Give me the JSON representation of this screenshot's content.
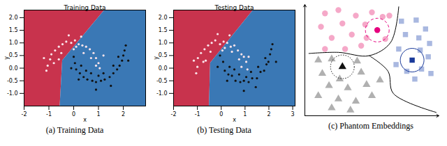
{
  "chart_data": [
    {
      "type": "scatter",
      "title": "Training Data",
      "caption": "(a) Training Data",
      "x_label": "x",
      "y_label": "y",
      "xlim": [
        -2,
        2.9
      ],
      "ylim": [
        -1.5,
        2.3
      ],
      "xticks": [
        -2,
        -1,
        0,
        1,
        2
      ],
      "yticks": [
        {
          "value": -1,
          "label": "-1.0"
        },
        {
          "value": -0.5,
          "label": "-0.5"
        },
        {
          "value": 0,
          "label": "0.0"
        },
        {
          "value": 0.5,
          "label": "0.5"
        },
        {
          "value": 1,
          "label": "1.0"
        },
        {
          "value": 1.5,
          "label": "1.5"
        },
        {
          "value": 2,
          "label": "2.0"
        }
      ],
      "regions": {
        "colors": [
          "#c8334d",
          "#3a78b5"
        ],
        "boundary": {
          "x": [
            -0.55,
            -0.45,
            1.25
          ],
          "y": [
            -1.5,
            0.3,
            2.3
          ]
        }
      },
      "series": [
        {
          "color": "#fbe4ea",
          "marker": "circle",
          "points": [
            [
              -1.05,
              0.1
            ],
            [
              -0.95,
              0.35
            ],
            [
              -0.9,
              0.55
            ],
            [
              -0.75,
              0.7
            ],
            [
              -0.6,
              0.85
            ],
            [
              -0.45,
              0.95
            ],
            [
              -0.3,
              1.05
            ],
            [
              -0.1,
              1.0
            ],
            [
              0.05,
              1.1
            ],
            [
              0.2,
              0.95
            ],
            [
              0.35,
              0.9
            ],
            [
              0.5,
              0.85
            ],
            [
              0.65,
              0.75
            ],
            [
              0.8,
              0.6
            ],
            [
              0.9,
              0.4
            ],
            [
              1.0,
              0.2
            ],
            [
              1.05,
              0.0
            ],
            [
              -0.8,
              0.2
            ],
            [
              -0.5,
              0.6
            ],
            [
              0.0,
              0.75
            ],
            [
              0.4,
              0.6
            ],
            [
              0.7,
              0.4
            ],
            [
              -1.2,
              0.4
            ],
            [
              -0.2,
              1.3
            ],
            [
              0.3,
              1.25
            ],
            [
              1.2,
              0.5
            ],
            [
              0.9,
              0.1
            ],
            [
              -0.6,
              0.35
            ],
            [
              0.1,
              0.85
            ],
            [
              -1.1,
              -0.1
            ]
          ]
        },
        {
          "color": "#111111",
          "marker": "circle",
          "points": [
            [
              0.0,
              0.45
            ],
            [
              0.05,
              0.2
            ],
            [
              0.1,
              -0.05
            ],
            [
              0.25,
              -0.2
            ],
            [
              0.4,
              -0.35
            ],
            [
              0.55,
              -0.45
            ],
            [
              0.75,
              -0.5
            ],
            [
              0.9,
              -0.55
            ],
            [
              1.1,
              -0.5
            ],
            [
              1.25,
              -0.45
            ],
            [
              1.45,
              -0.35
            ],
            [
              1.6,
              -0.2
            ],
            [
              1.75,
              -0.05
            ],
            [
              1.85,
              0.1
            ],
            [
              1.95,
              0.3
            ],
            [
              2.0,
              0.5
            ],
            [
              2.05,
              0.7
            ],
            [
              0.3,
              0.1
            ],
            [
              0.7,
              -0.2
            ],
            [
              1.2,
              -0.2
            ],
            [
              1.6,
              0.1
            ],
            [
              1.8,
              0.45
            ],
            [
              0.2,
              -0.45
            ],
            [
              0.9,
              -0.85
            ],
            [
              1.5,
              -0.7
            ],
            [
              2.2,
              0.3
            ],
            [
              -0.1,
              0.0
            ],
            [
              1.0,
              -0.3
            ],
            [
              2.1,
              0.9
            ],
            [
              0.5,
              -0.1
            ]
          ]
        }
      ]
    },
    {
      "type": "scatter",
      "title": "Testing Data",
      "caption": "(b) Testing Data",
      "x_label": "x",
      "y_label": "y",
      "xlim": [
        -2,
        3.1
      ],
      "ylim": [
        -1.5,
        2.3
      ],
      "xticks": [
        -2,
        -1,
        0,
        1,
        2,
        3
      ],
      "yticks": [
        {
          "value": -1,
          "label": "-1.0"
        },
        {
          "value": -0.5,
          "label": "-0.5"
        },
        {
          "value": 0,
          "label": "0.0"
        },
        {
          "value": 0.5,
          "label": "0.5"
        },
        {
          "value": 1,
          "label": "1.0"
        },
        {
          "value": 1.5,
          "label": "1.5"
        },
        {
          "value": 2,
          "label": "2.0"
        }
      ],
      "regions": {
        "colors": [
          "#c8334d",
          "#3a78b5"
        ],
        "boundary": {
          "x": [
            -0.5,
            -0.45,
            1.35
          ],
          "y": [
            -1.5,
            0.2,
            2.3
          ]
        }
      },
      "series": [
        {
          "color": "#fbe4ea",
          "marker": "circle",
          "points": [
            [
              -1.0,
              0.05
            ],
            [
              -0.98,
              0.4
            ],
            [
              -0.85,
              0.6
            ],
            [
              -0.7,
              0.75
            ],
            [
              -0.55,
              0.9
            ],
            [
              -0.4,
              1.0
            ],
            [
              -0.25,
              1.1
            ],
            [
              -0.05,
              0.95
            ],
            [
              0.1,
              1.05
            ],
            [
              0.25,
              1.0
            ],
            [
              0.4,
              0.85
            ],
            [
              0.55,
              0.9
            ],
            [
              0.7,
              0.7
            ],
            [
              0.85,
              0.55
            ],
            [
              0.95,
              0.45
            ],
            [
              1.05,
              0.25
            ],
            [
              1.1,
              -0.05
            ],
            [
              -0.75,
              0.25
            ],
            [
              -0.45,
              0.65
            ],
            [
              0.05,
              0.7
            ],
            [
              0.45,
              0.65
            ],
            [
              0.75,
              0.35
            ],
            [
              -1.15,
              0.3
            ],
            [
              -0.15,
              1.35
            ],
            [
              0.35,
              1.3
            ],
            [
              1.15,
              0.45
            ],
            [
              0.85,
              0.05
            ],
            [
              -0.65,
              0.3
            ],
            [
              0.15,
              0.8
            ],
            [
              -1.05,
              -0.2
            ]
          ]
        },
        {
          "color": "#111111",
          "marker": "circle",
          "points": [
            [
              -0.05,
              0.5
            ],
            [
              0.08,
              0.25
            ],
            [
              0.15,
              -0.1
            ],
            [
              0.3,
              -0.25
            ],
            [
              0.45,
              -0.3
            ],
            [
              0.6,
              -0.5
            ],
            [
              0.8,
              -0.55
            ],
            [
              0.95,
              -0.5
            ],
            [
              1.15,
              -0.55
            ],
            [
              1.3,
              -0.4
            ],
            [
              1.5,
              -0.4
            ],
            [
              1.65,
              -0.15
            ],
            [
              1.8,
              -0.1
            ],
            [
              1.9,
              0.15
            ],
            [
              1.98,
              0.25
            ],
            [
              2.05,
              0.55
            ],
            [
              2.1,
              0.75
            ],
            [
              0.35,
              0.05
            ],
            [
              0.75,
              -0.25
            ],
            [
              1.25,
              -0.15
            ],
            [
              1.55,
              0.05
            ],
            [
              1.85,
              0.4
            ],
            [
              0.25,
              -0.5
            ],
            [
              0.95,
              -0.9
            ],
            [
              1.45,
              -0.75
            ],
            [
              2.3,
              0.25
            ],
            [
              -0.15,
              0.05
            ],
            [
              1.05,
              -0.35
            ],
            [
              2.15,
              0.95
            ],
            [
              0.55,
              -0.05
            ]
          ]
        }
      ]
    },
    {
      "type": "scatter",
      "caption": "(c) Phantom Embeddings",
      "xlim": [
        0,
        10
      ],
      "ylim": [
        0,
        10
      ],
      "tick_labels": false,
      "series": [
        {
          "color": "#f5a8c8",
          "marker": "circle",
          "points": [
            [
              1.5,
              9.2
            ],
            [
              2.5,
              9.5
            ],
            [
              3.8,
              9.0
            ],
            [
              5.0,
              9.3
            ],
            [
              6.3,
              9.0
            ],
            [
              1.2,
              8.0
            ],
            [
              2.8,
              8.3
            ],
            [
              4.5,
              8.2
            ],
            [
              5.8,
              8.9
            ],
            [
              3.5,
              7.3
            ],
            [
              2.0,
              7.0
            ],
            [
              4.6,
              7.0
            ],
            [
              4.2,
              6.3
            ],
            [
              1.5,
              6.0
            ],
            [
              3.0,
              6.0
            ],
            [
              6.0,
              6.9
            ]
          ]
        },
        {
          "color": "#a9b8e0",
          "marker": "square",
          "points": [
            [
              7.2,
              8.5
            ],
            [
              8.3,
              8.6
            ],
            [
              9.0,
              7.8
            ],
            [
              7.5,
              7.3
            ],
            [
              8.5,
              7.0
            ],
            [
              9.3,
              6.5
            ],
            [
              7.0,
              6.0
            ],
            [
              8.6,
              5.9
            ],
            [
              9.2,
              5.3
            ],
            [
              7.6,
              4.0
            ],
            [
              8.7,
              4.2
            ],
            [
              9.4,
              3.8
            ],
            [
              6.8,
              4.6
            ],
            [
              8.2,
              3.3
            ]
          ]
        },
        {
          "color": "#b0b0b0",
          "marker": "triangle",
          "points": [
            [
              1.0,
              5.0
            ],
            [
              2.0,
              5.1
            ],
            [
              3.9,
              4.9
            ],
            [
              1.3,
              3.8
            ],
            [
              2.6,
              3.3
            ],
            [
              4.2,
              3.9
            ],
            [
              1.8,
              2.7
            ],
            [
              3.2,
              2.5
            ],
            [
              4.6,
              2.8
            ],
            [
              1.0,
              1.8
            ],
            [
              2.5,
              1.5
            ],
            [
              3.8,
              1.3
            ],
            [
              5.0,
              1.8
            ],
            [
              2.0,
              0.7
            ],
            [
              3.4,
              0.5
            ],
            [
              5.6,
              3.2
            ]
          ]
        },
        {
          "color": "#e6007e",
          "marker": "circle",
          "line_style": "dashed",
          "points": [
            [
              5.4,
              7.7
            ]
          ]
        },
        {
          "color": "#1a3a9a",
          "marker": "square",
          "line_style": "solid",
          "points": [
            [
              8.0,
              5.0
            ]
          ]
        },
        {
          "color": "#111111",
          "marker": "triangle",
          "line_style": "dotted",
          "points": [
            [
              2.8,
              4.4
            ]
          ]
        }
      ],
      "boundaries": [
        {
          "points": [
            [
              0.3,
              5.6
            ],
            [
              2.5,
              5.7
            ],
            [
              4.8,
              5.4
            ],
            [
              6.4,
              6.6
            ],
            [
              7.0,
              9.8
            ]
          ]
        },
        {
          "points": [
            [
              4.8,
              5.4
            ],
            [
              6.2,
              4.0
            ],
            [
              6.6,
              2.0
            ],
            [
              9.8,
              0.3
            ]
          ]
        }
      ]
    }
  ]
}
